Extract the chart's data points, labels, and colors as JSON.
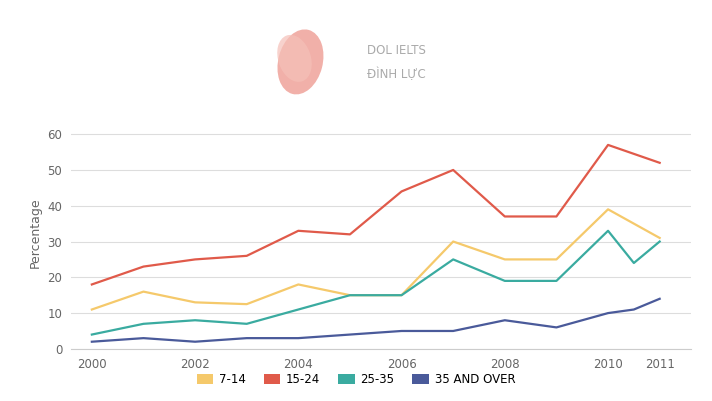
{
  "years_714": [
    2000,
    2001,
    2002,
    2003,
    2004,
    2005,
    2006,
    2007,
    2008,
    2009,
    2010,
    2011
  ],
  "vals_714": [
    11,
    16,
    13,
    12.5,
    18,
    15,
    15,
    30,
    25,
    25,
    39,
    31
  ],
  "years_1524": [
    2000,
    2001,
    2002,
    2003,
    2004,
    2005,
    2006,
    2007,
    2008,
    2009,
    2010,
    2011
  ],
  "vals_1524": [
    18,
    23,
    25,
    26,
    33,
    32,
    44,
    50,
    37,
    37,
    57,
    52
  ],
  "years_2535": [
    2000,
    2001,
    2002,
    2003,
    2004,
    2005,
    2006,
    2007,
    2008,
    2009,
    2010,
    2010.5,
    2011
  ],
  "vals_2535": [
    4,
    7,
    8,
    7,
    11,
    15,
    15,
    25,
    19,
    19,
    33,
    24,
    30
  ],
  "years_35ov": [
    2000,
    2001,
    2002,
    2003,
    2004,
    2005,
    2006,
    2007,
    2008,
    2009,
    2010,
    2010.5,
    2011
  ],
  "vals_35ov": [
    2,
    3,
    2,
    3,
    3,
    4,
    5,
    5,
    8,
    6,
    10,
    11,
    14
  ],
  "colors": {
    "7-14": "#F5C96B",
    "15-24": "#E05A4A",
    "25-35": "#3AABA0",
    "35 AND OVER": "#4A5A9A"
  },
  "ylabel": "Percentage",
  "ylim": [
    0,
    65
  ],
  "yticks": [
    0,
    10,
    20,
    30,
    40,
    50,
    60
  ],
  "xlim": [
    1999.6,
    2011.6
  ],
  "xticks": [
    2000,
    2002,
    2004,
    2006,
    2008,
    2010,
    2011
  ],
  "bg_color": "#FFFFFF",
  "grid_color": "#DDDDDD",
  "linewidth": 1.6,
  "legend_labels": [
    "7-14",
    "15-24",
    "25-35",
    "35 AND OVER"
  ]
}
